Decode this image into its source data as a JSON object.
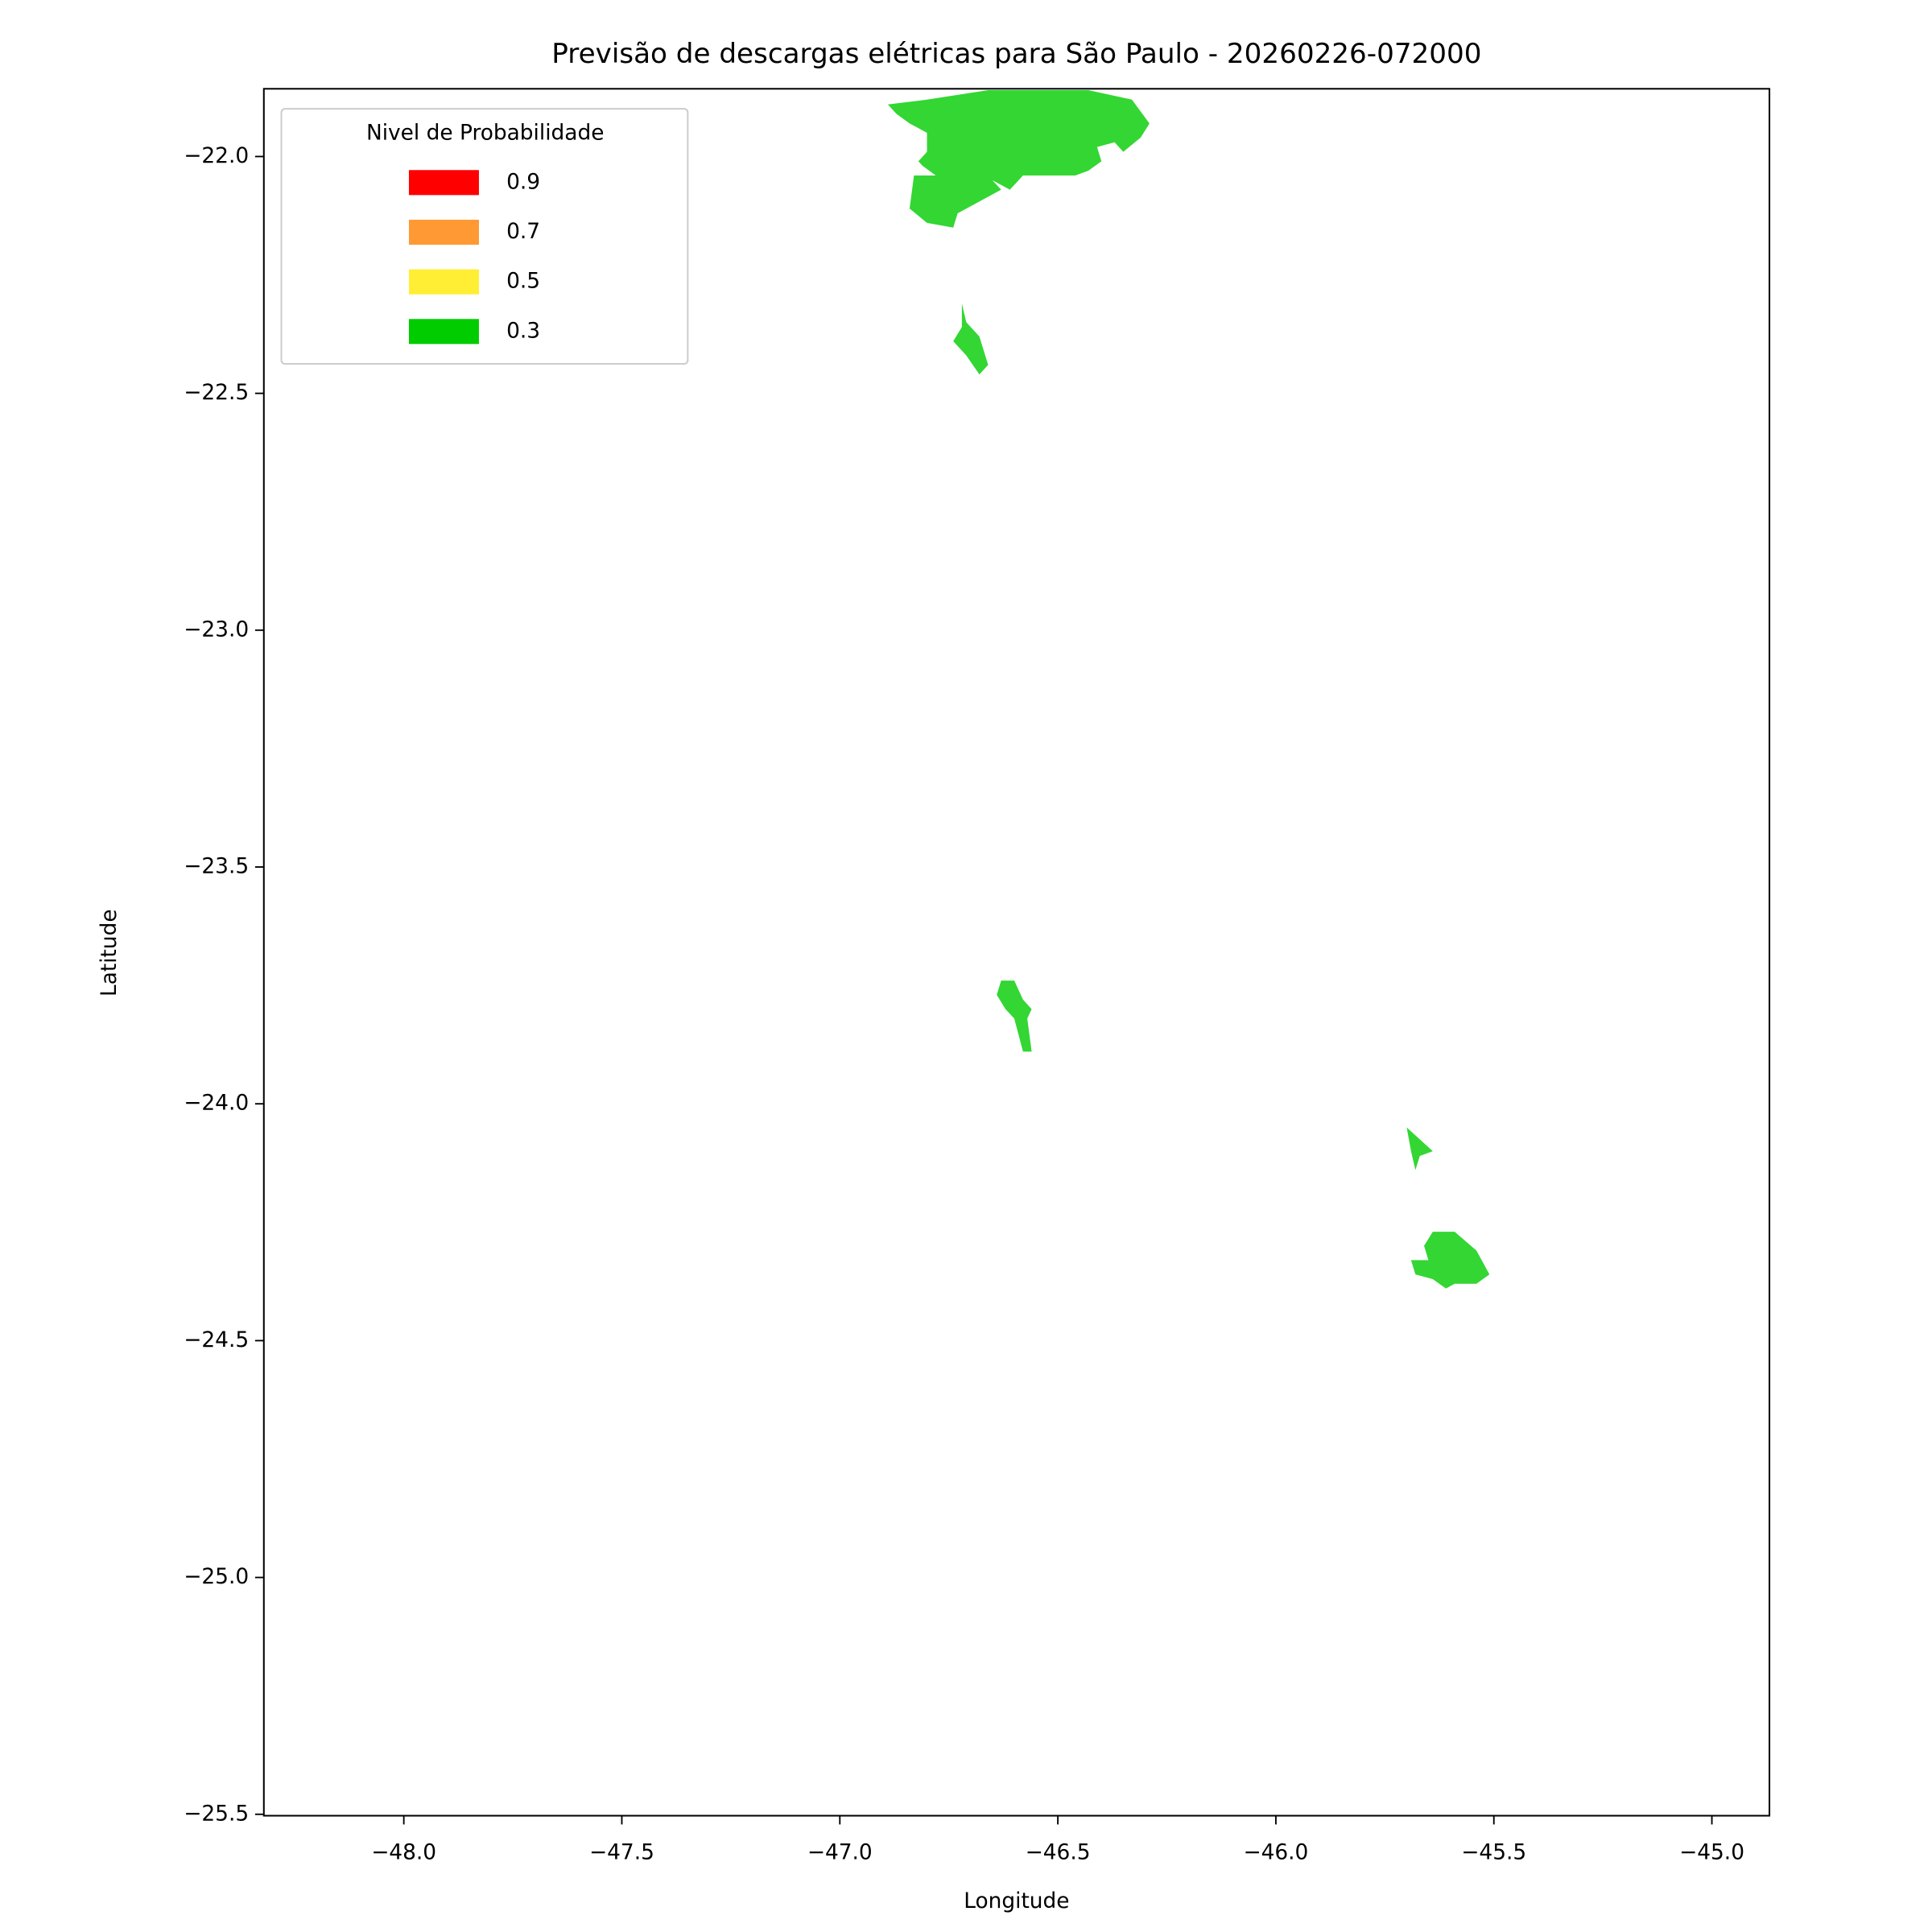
{
  "chart_data": {
    "type": "contour-map",
    "title": "Previsão de descargas elétricas para São Paulo - 20260226-072000",
    "x_label": "Longitude",
    "y_label": "Latitude",
    "xlim": [
      -48.321,
      -44.868
    ],
    "ylim": [
      -25.503,
      -21.857
    ],
    "xticks": [
      {
        "value": -48.0,
        "label": "−48.0"
      },
      {
        "value": -47.5,
        "label": "−47.5"
      },
      {
        "value": -47.0,
        "label": "−47.0"
      },
      {
        "value": -46.5,
        "label": "−46.5"
      },
      {
        "value": -46.0,
        "label": "−46.0"
      },
      {
        "value": -45.5,
        "label": "−45.5"
      },
      {
        "value": -45.0,
        "label": "−45.0"
      }
    ],
    "yticks": [
      {
        "value": -22.0,
        "label": "−22.0"
      },
      {
        "value": -22.5,
        "label": "−22.5"
      },
      {
        "value": -23.0,
        "label": "−23.0"
      },
      {
        "value": -23.5,
        "label": "−23.5"
      },
      {
        "value": -24.0,
        "label": "−24.0"
      },
      {
        "value": -24.5,
        "label": "−24.5"
      },
      {
        "value": -25.0,
        "label": "−25.0"
      },
      {
        "value": -25.5,
        "label": "−25.5"
      }
    ],
    "legend": {
      "title": "Nivel de Probabilidade",
      "position": "upper left",
      "items": [
        {
          "label": 0.9,
          "color": "#ff0000"
        },
        {
          "label": 0.7,
          "color": "#ff9933"
        },
        {
          "label": 0.5,
          "color": "#ffee33"
        },
        {
          "label": 0.3,
          "color": "#00cc00"
        }
      ]
    },
    "fill_color": "#00cc00",
    "fill_alpha": 0.8,
    "polygons": [
      {
        "x": [
          -46.89,
          -46.8,
          -46.66,
          -46.43,
          -46.33,
          -46.29,
          -46.31,
          -46.35,
          -46.37,
          -46.41,
          -46.4,
          -46.43,
          -46.46,
          -46.58,
          -46.61,
          -46.65,
          -46.63,
          -46.73,
          -46.74,
          -46.8,
          -46.84,
          -46.83,
          -46.78,
          -46.81,
          -46.82,
          -46.8,
          -46.8,
          -46.84,
          -46.87
        ],
        "y": [
          -21.89,
          -21.88,
          -21.86,
          -21.86,
          -21.88,
          -21.93,
          -21.96,
          -21.99,
          -21.97,
          -21.98,
          -22.01,
          -22.03,
          -22.04,
          -22.04,
          -22.07,
          -22.05,
          -22.07,
          -22.12,
          -22.15,
          -22.14,
          -22.11,
          -22.04,
          -22.04,
          -22.02,
          -22.01,
          -21.99,
          -21.95,
          -21.93,
          -21.91
        ]
      },
      {
        "x": [
          -46.72,
          -46.71,
          -46.68,
          -46.66,
          -46.68,
          -46.71,
          -46.74,
          -46.72
        ],
        "y": [
          -22.31,
          -22.35,
          -22.38,
          -22.44,
          -22.46,
          -22.42,
          -22.39,
          -22.36
        ]
      },
      {
        "x": [
          -46.63,
          -46.6,
          -46.58,
          -46.56,
          -46.57,
          -46.56,
          -46.58,
          -46.6,
          -46.62,
          -46.64
        ],
        "y": [
          -23.74,
          -23.74,
          -23.78,
          -23.8,
          -23.82,
          -23.89,
          -23.89,
          -23.82,
          -23.8,
          -23.77
        ]
      },
      {
        "x": [
          -45.7,
          -45.64,
          -45.67,
          -45.68,
          -45.69
        ],
        "y": [
          -24.05,
          -24.1,
          -24.11,
          -24.14,
          -24.1
        ]
      },
      {
        "x": [
          -45.64,
          -45.59,
          -45.54,
          -45.51,
          -45.54,
          -45.59,
          -45.61,
          -45.64,
          -45.68,
          -45.69,
          -45.65,
          -45.66
        ],
        "y": [
          -24.27,
          -24.27,
          -24.31,
          -24.36,
          -24.38,
          -24.38,
          -24.39,
          -24.37,
          -24.36,
          -24.33,
          -24.33,
          -24.3
        ]
      }
    ]
  }
}
